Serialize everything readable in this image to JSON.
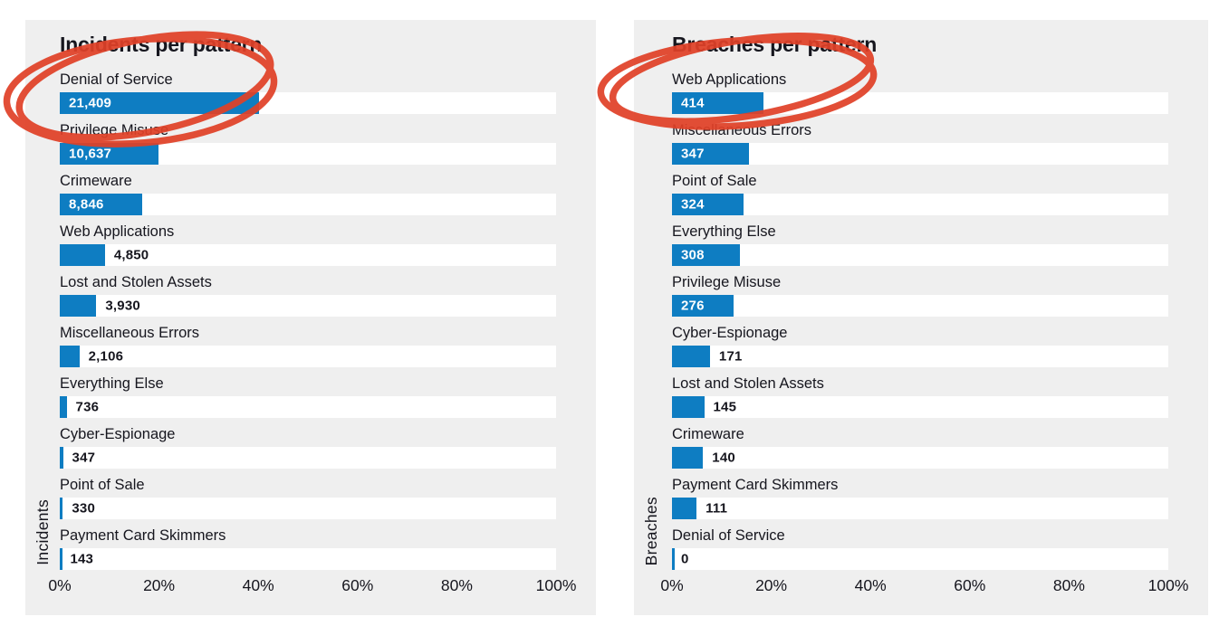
{
  "colors": {
    "page_bg": "#ffffff",
    "panel_bg": "#efefef",
    "bar": "#0e7dc2",
    "track": "#ffffff",
    "text": "#16161e",
    "value_inside": "#ffffff",
    "annotation_red": "#e04128"
  },
  "axis_ticks": [
    "0%",
    "20%",
    "40%",
    "60%",
    "80%",
    "100%"
  ],
  "charts": [
    {
      "title": "Incidents per pattern",
      "axis_label": "Incidents",
      "items": [
        {
          "label": "Denial of Service",
          "value_label": "21,409",
          "pct": 40.14,
          "inside": true,
          "annotated": true
        },
        {
          "label": "Privilege Misuse",
          "value_label": "10,637",
          "pct": 19.94,
          "inside": true,
          "annotated": false
        },
        {
          "label": "Crimeware",
          "value_label": "8,846",
          "pct": 16.59,
          "inside": true,
          "annotated": false
        },
        {
          "label": "Web Applications",
          "value_label": "4,850",
          "pct": 9.09,
          "inside": false,
          "annotated": false
        },
        {
          "label": "Lost and Stolen Assets",
          "value_label": "3,930",
          "pct": 7.37,
          "inside": false,
          "annotated": false
        },
        {
          "label": "Miscellaneous Errors",
          "value_label": "2,106",
          "pct": 3.95,
          "inside": false,
          "annotated": false
        },
        {
          "label": "Everything Else",
          "value_label": "736",
          "pct": 1.38,
          "inside": false,
          "annotated": false
        },
        {
          "label": "Cyber-Espionage",
          "value_label": "347",
          "pct": 0.65,
          "inside": false,
          "annotated": false
        },
        {
          "label": "Point of Sale",
          "value_label": "330",
          "pct": 0.62,
          "inside": false,
          "annotated": false
        },
        {
          "label": "Payment Card Skimmers",
          "value_label": "143",
          "pct": 0.27,
          "inside": false,
          "annotated": false
        }
      ]
    },
    {
      "title": "Breaches per pattern",
      "axis_label": "Breaches",
      "items": [
        {
          "label": "Web Applications",
          "value_label": "414",
          "pct": 18.52,
          "inside": true,
          "annotated": true
        },
        {
          "label": "Miscellaneous Errors",
          "value_label": "347",
          "pct": 15.52,
          "inside": true,
          "annotated": false
        },
        {
          "label": "Point of Sale",
          "value_label": "324",
          "pct": 14.49,
          "inside": true,
          "annotated": false
        },
        {
          "label": "Everything Else",
          "value_label": "308",
          "pct": 13.77,
          "inside": true,
          "annotated": false
        },
        {
          "label": "Privilege Misuse",
          "value_label": "276",
          "pct": 12.34,
          "inside": true,
          "annotated": false
        },
        {
          "label": "Cyber-Espionage",
          "value_label": "171",
          "pct": 7.65,
          "inside": false,
          "annotated": false
        },
        {
          "label": "Lost and Stolen Assets",
          "value_label": "145",
          "pct": 6.48,
          "inside": false,
          "annotated": false
        },
        {
          "label": "Crimeware",
          "value_label": "140",
          "pct": 6.26,
          "inside": false,
          "annotated": false
        },
        {
          "label": "Payment Card Skimmers",
          "value_label": "111",
          "pct": 4.96,
          "inside": false,
          "annotated": false
        },
        {
          "label": "Denial of Service",
          "value_label": "0",
          "pct": 0.0,
          "inside": false,
          "annotated": false
        }
      ]
    }
  ],
  "chart_data": [
    {
      "type": "bar",
      "orientation": "horizontal",
      "title": "Incidents per pattern",
      "ylabel": "Incidents",
      "xlabel": "",
      "x_ticks": [
        "0%",
        "20%",
        "40%",
        "60%",
        "80%",
        "100%"
      ],
      "xlim_percent": [
        0,
        100
      ],
      "grid": false,
      "legend": false,
      "categories": [
        "Denial of Service",
        "Privilege Misuse",
        "Crimeware",
        "Web Applications",
        "Lost and Stolen Assets",
        "Miscellaneous Errors",
        "Everything Else",
        "Cyber-Espionage",
        "Point of Sale",
        "Payment Card Skimmers"
      ],
      "values": [
        21409,
        10637,
        8846,
        4850,
        3930,
        2106,
        736,
        347,
        330,
        143
      ],
      "bar_lengths_percent_of_total": [
        40.14,
        19.94,
        16.59,
        9.09,
        7.37,
        3.95,
        1.38,
        0.65,
        0.62,
        0.27
      ],
      "annotations": [
        "hand-drawn red ellipse circling 'Denial of Service' and its value 21,409"
      ]
    },
    {
      "type": "bar",
      "orientation": "horizontal",
      "title": "Breaches per pattern",
      "ylabel": "Breaches",
      "xlabel": "",
      "x_ticks": [
        "0%",
        "20%",
        "40%",
        "60%",
        "80%",
        "100%"
      ],
      "xlim_percent": [
        0,
        100
      ],
      "grid": false,
      "legend": false,
      "categories": [
        "Web Applications",
        "Miscellaneous Errors",
        "Point of Sale",
        "Everything Else",
        "Privilege Misuse",
        "Cyber-Espionage",
        "Lost and Stolen Assets",
        "Crimeware",
        "Payment Card Skimmers",
        "Denial of Service"
      ],
      "values": [
        414,
        347,
        324,
        308,
        276,
        171,
        145,
        140,
        111,
        0
      ],
      "bar_lengths_percent_of_total": [
        18.52,
        15.52,
        14.49,
        13.77,
        12.34,
        7.65,
        6.48,
        6.26,
        4.96,
        0.0
      ],
      "annotations": [
        "hand-drawn red ellipse circling 'Web Applications' and its value 414"
      ]
    }
  ]
}
